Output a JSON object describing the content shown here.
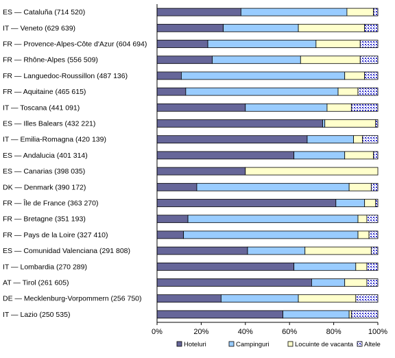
{
  "chart_data": {
    "type": "bar",
    "orientation": "horizontal",
    "stacked": "percent",
    "categories": [
      "ES — Cataluña (714 520)",
      "IT — Veneto (629 639)",
      "FR — Provence-Alpes-Côte d'Azur (604 694)",
      "FR — Rhône-Alpes (556 509)",
      "FR — Languedoc-Roussillon (487 136)",
      "FR — Aquitaine (465 615)",
      "IT — Toscana (441 091)",
      "ES — Illes Balears (432 221)",
      "IT — Emilia-Romagna (420 139)",
      "ES — Andalucia (401 314)",
      "ES — Canarias (398 035)",
      "DK — Denmark (390 172)",
      "FR — Île de France (363 270)",
      "FR — Bretagne (351 193)",
      "FR — Pays de la Loire (327 410)",
      "ES — Comunidad Valenciana (291 808)",
      "IT — Lombardia (270 289)",
      "AT — Tirol (261 605)",
      "DE — Mecklenburg-Vorpommern (256 750)",
      "IT — Lazio (250 535)"
    ],
    "series": [
      {
        "name": "Hoteluri",
        "color": "#666699",
        "pattern": "solid",
        "values": [
          38,
          30,
          23,
          25,
          11,
          13,
          40,
          75,
          68,
          62,
          40,
          18,
          81,
          14,
          12,
          41,
          62,
          70,
          29,
          57
        ]
      },
      {
        "name": "Campinguri",
        "color": "#99ccff",
        "pattern": "solid",
        "values": [
          48,
          34,
          49,
          40,
          74,
          69,
          37,
          1,
          21,
          23,
          0,
          69,
          13,
          77,
          79,
          26,
          28,
          15,
          35,
          30
        ]
      },
      {
        "name": "Locuinte de vacanta",
        "color": "#ffffcc",
        "pattern": "solid",
        "values": [
          12,
          30,
          20,
          27,
          9,
          9,
          11,
          23,
          4,
          13,
          60,
          10,
          5,
          4,
          5,
          30,
          5,
          10,
          26,
          1
        ]
      },
      {
        "name": "Altele",
        "color": "#3333cc",
        "pattern": "dotted",
        "values": [
          2,
          6,
          8,
          8,
          6,
          9,
          12,
          1,
          7,
          2,
          0,
          3,
          1,
          5,
          4,
          3,
          5,
          5,
          10,
          12
        ]
      }
    ],
    "x_ticks": [
      "0%",
      "20%",
      "40%",
      "60%",
      "80%",
      "100%"
    ],
    "xlim": [
      0,
      100
    ],
    "legend_position": "bottom",
    "grid": false
  }
}
